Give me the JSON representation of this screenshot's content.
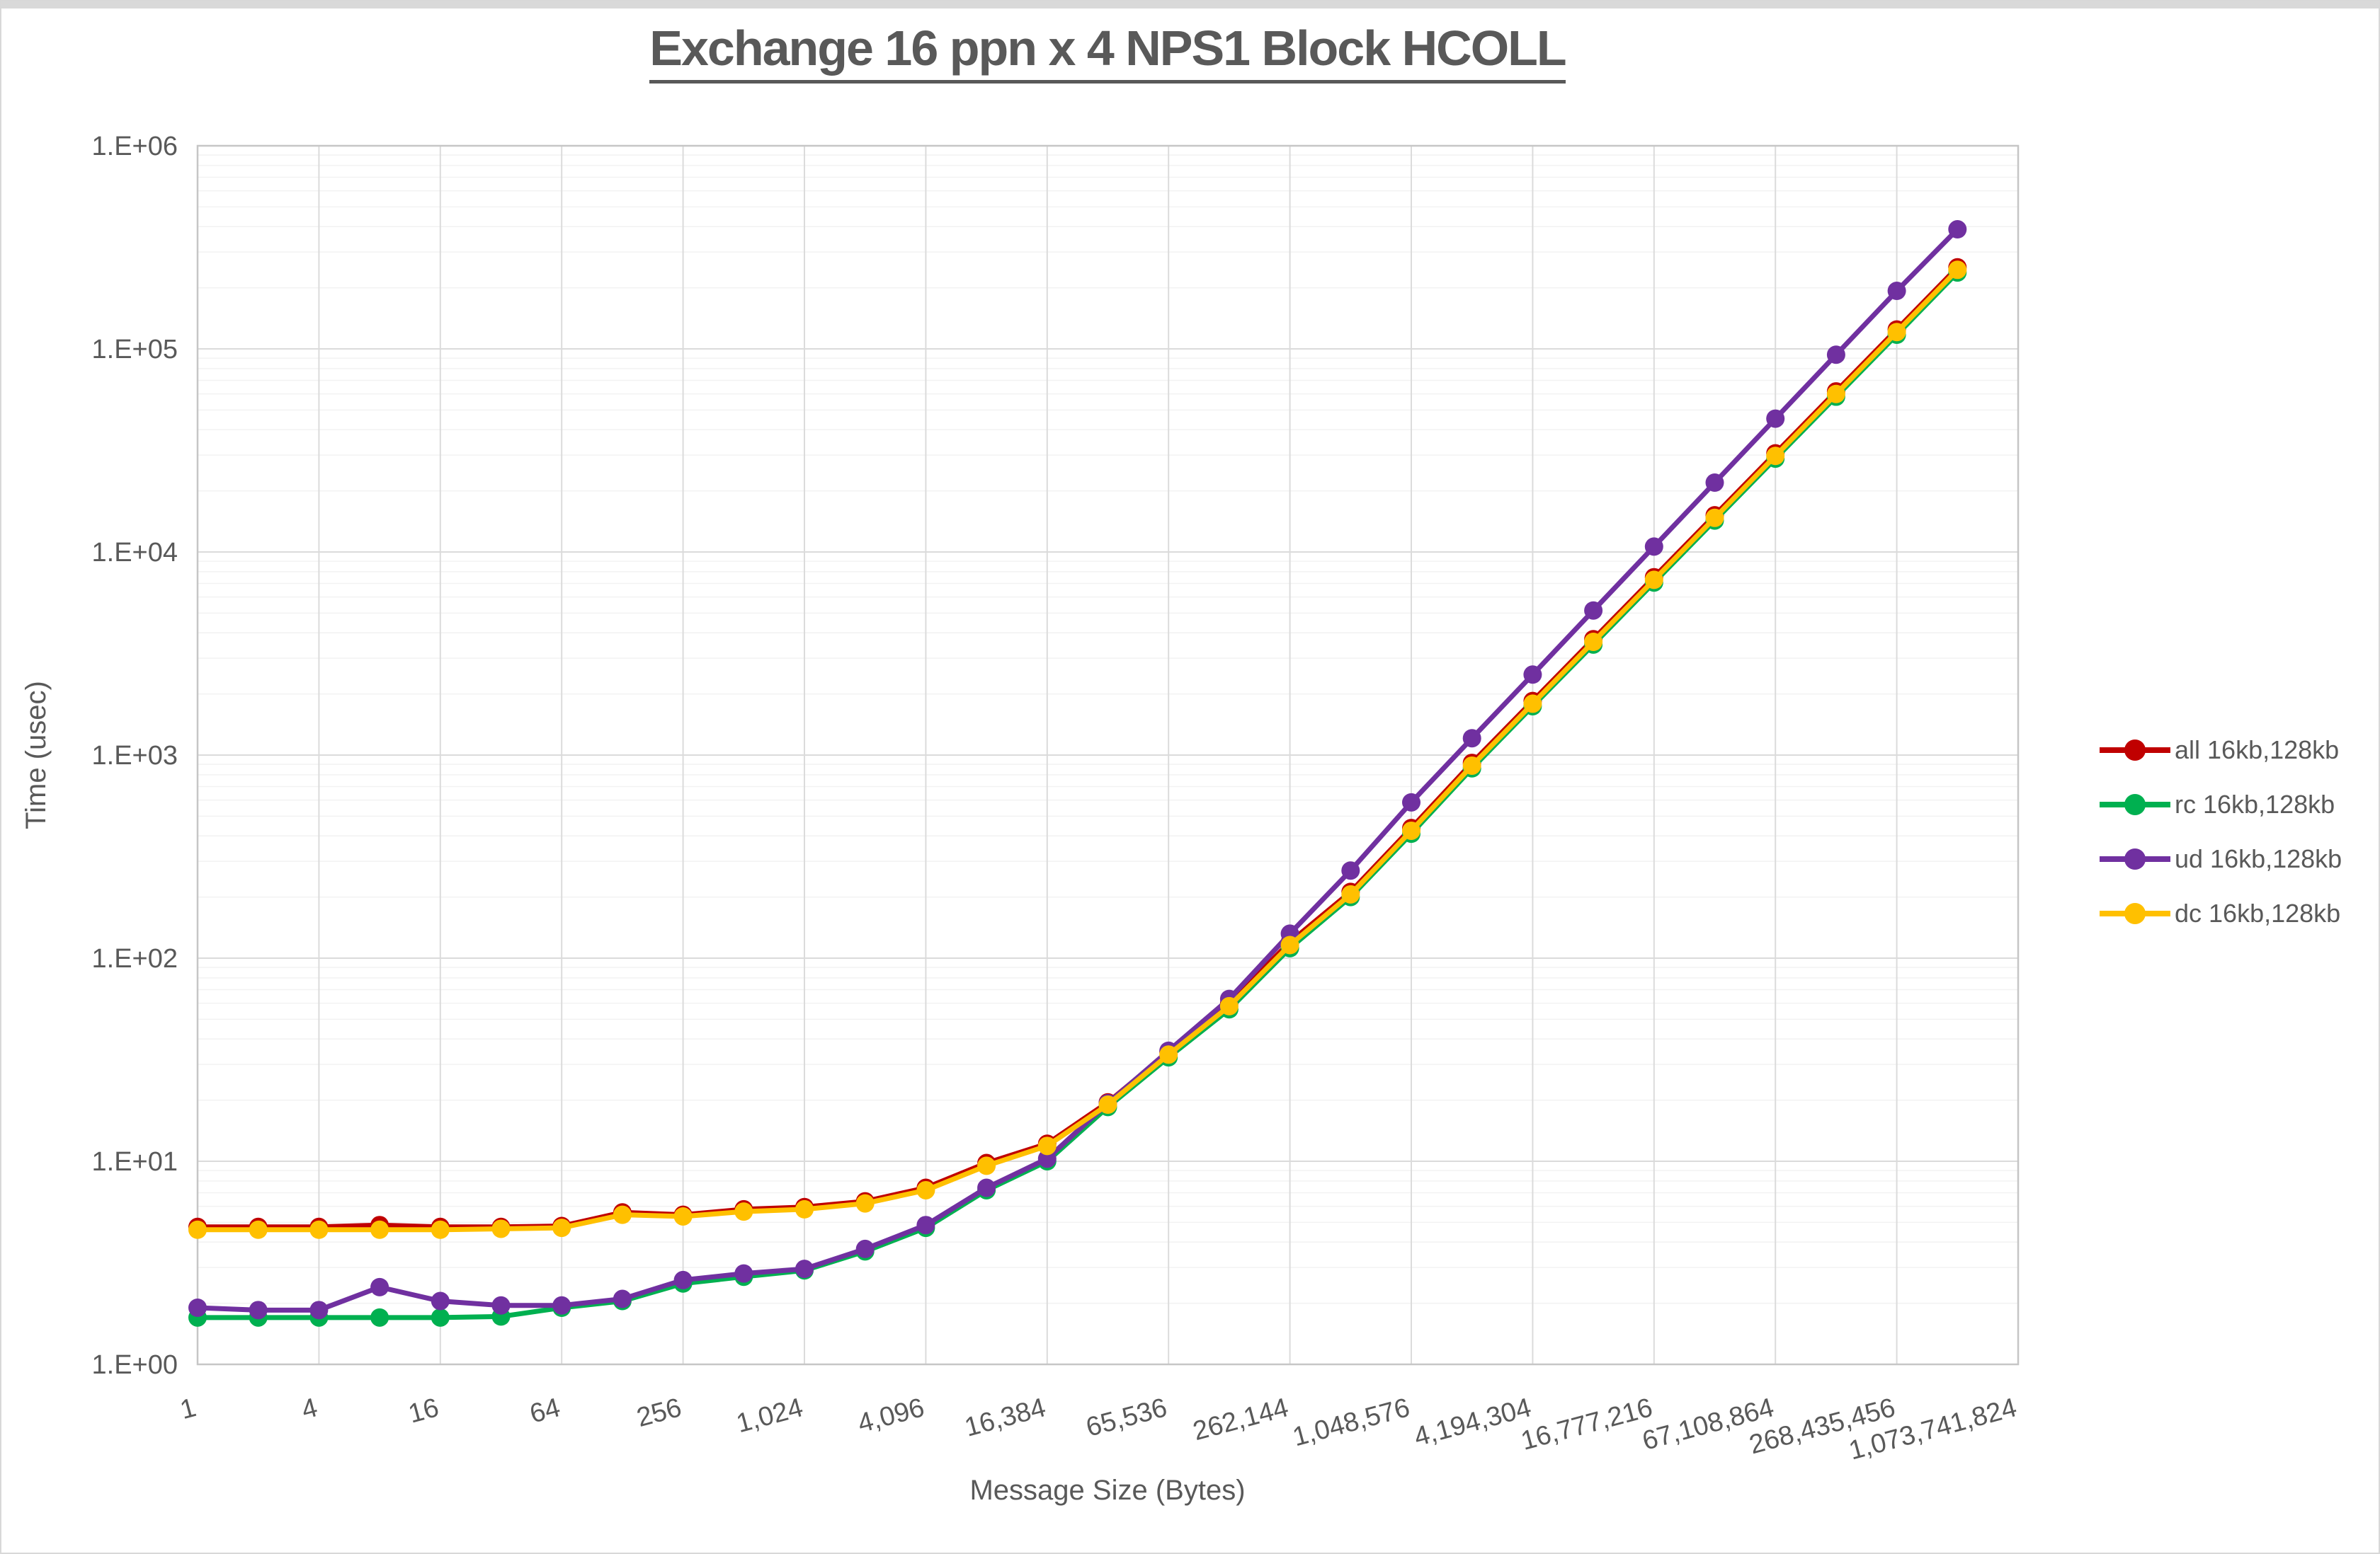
{
  "window": {
    "top_strip_color": "#d9d9d9",
    "background_color": "#ffffff"
  },
  "chart_data": {
    "type": "line",
    "title": "Exchange 16 ppn x 4 NPS1 Block HCOLL",
    "xlabel": "Message Size (Bytes)",
    "ylabel": "Time (usec)",
    "x_scale": "log2-category",
    "y_scale": "log10",
    "ylim": [
      1,
      1000000
    ],
    "y_tick_labels": [
      "1.E+00",
      "1.E+01",
      "1.E+02",
      "1.E+03",
      "1.E+04",
      "1.E+05",
      "1.E+06"
    ],
    "x_tick_labels": [
      "1",
      "4",
      "16",
      "64",
      "256",
      "1,024",
      "4,096",
      "16,384",
      "65,536",
      "262,144",
      "1,048,576",
      "4,194,304",
      "16,777,216",
      "67,108,864",
      "268,435,456",
      "1,073,741,824"
    ],
    "x_tick_label_rotation_deg": -15,
    "x_axis_last_category": 1073741824,
    "grid": {
      "major": true,
      "minor_log": true
    },
    "legend_position": "right-middle",
    "marker": "circle",
    "categories": [
      1,
      2,
      4,
      8,
      16,
      32,
      64,
      128,
      256,
      512,
      1024,
      2048,
      4096,
      8192,
      16384,
      32768,
      65536,
      131072,
      262144,
      524288,
      1048576,
      2097152,
      4194304,
      8388608,
      16777216,
      33554432,
      67108864,
      134217728,
      268435456,
      536870912
    ],
    "series": [
      {
        "name": "all 16kb,128kb",
        "color": "#C00000",
        "values": [
          4.75,
          4.75,
          4.75,
          4.85,
          4.75,
          4.75,
          4.8,
          5.6,
          5.45,
          5.8,
          5.95,
          6.35,
          7.4,
          9.8,
          12.2,
          19.5,
          34.5,
          60,
          120,
          212,
          437,
          915,
          1845,
          3720,
          7510,
          15160,
          30600,
          61760,
          124600,
          252000
        ]
      },
      {
        "name": "rc 16kb,128kb",
        "color": "#00B050",
        "values": [
          1.7,
          1.7,
          1.7,
          1.7,
          1.7,
          1.72,
          1.9,
          2.05,
          2.5,
          2.7,
          2.9,
          3.6,
          4.7,
          7.2,
          10.0,
          18.5,
          32.5,
          56,
          112,
          200,
          410,
          860,
          1740,
          3500,
          7070,
          14280,
          28820,
          58160,
          117400,
          237700
        ]
      },
      {
        "name": "ud 16kb,128kb",
        "color": "#7030A0",
        "values": [
          1.9,
          1.85,
          1.85,
          2.4,
          2.05,
          1.95,
          1.95,
          2.1,
          2.6,
          2.8,
          2.95,
          3.7,
          4.85,
          7.4,
          10.3,
          19.3,
          35,
          63,
          132,
          270,
          585,
          1210,
          2490,
          5150,
          10630,
          21950,
          45330,
          93600,
          193000,
          388000
        ]
      },
      {
        "name": "dc 16kb,128kb",
        "color": "#FFC000",
        "values": [
          4.6,
          4.6,
          4.6,
          4.6,
          4.6,
          4.65,
          4.7,
          5.45,
          5.35,
          5.65,
          5.8,
          6.2,
          7.2,
          9.5,
          11.9,
          19.0,
          33.5,
          58,
          116,
          206,
          424,
          887,
          1790,
          3610,
          7290,
          14720,
          29710,
          59960,
          121000,
          245000
        ]
      }
    ],
    "style": {
      "major_grid_color": "#dbdbdb",
      "minor_grid_color": "#f2f2f2",
      "border_color": "#c6c6c6",
      "tick_label_color": "#595959",
      "line_width": 7,
      "marker_radius": 13
    }
  }
}
